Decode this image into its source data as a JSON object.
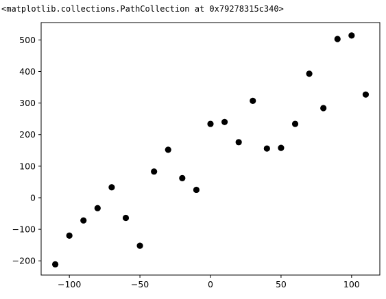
{
  "output_text": "<matplotlib.collections.PathCollection at 0x79278315c340>",
  "chart_data": {
    "type": "scatter",
    "marker_color": "#000000",
    "x": [
      -110,
      -100,
      -90,
      -80,
      -70,
      -60,
      -50,
      -40,
      -30,
      -20,
      -10,
      0,
      10,
      20,
      30,
      40,
      50,
      60,
      70,
      80,
      90,
      100,
      110
    ],
    "y": [
      -211,
      -120,
      -72,
      -33,
      33,
      -64,
      -152,
      83,
      152,
      62,
      25,
      234,
      240,
      176,
      307,
      156,
      158,
      234,
      393,
      284,
      503,
      514,
      327
    ],
    "xlim": [
      -120,
      120
    ],
    "ylim": [
      -245,
      555
    ],
    "xticks": [
      -100,
      -50,
      0,
      50,
      100
    ],
    "xtick_labels": [
      "−100",
      "−50",
      "0",
      "50",
      "100"
    ],
    "yticks": [
      -200,
      -100,
      0,
      100,
      200,
      300,
      400,
      500
    ],
    "ytick_labels": [
      "−200",
      "−100",
      "0",
      "100",
      "200",
      "300",
      "400",
      "500"
    ],
    "grid": false,
    "title": "",
    "xlabel": "",
    "ylabel": ""
  }
}
